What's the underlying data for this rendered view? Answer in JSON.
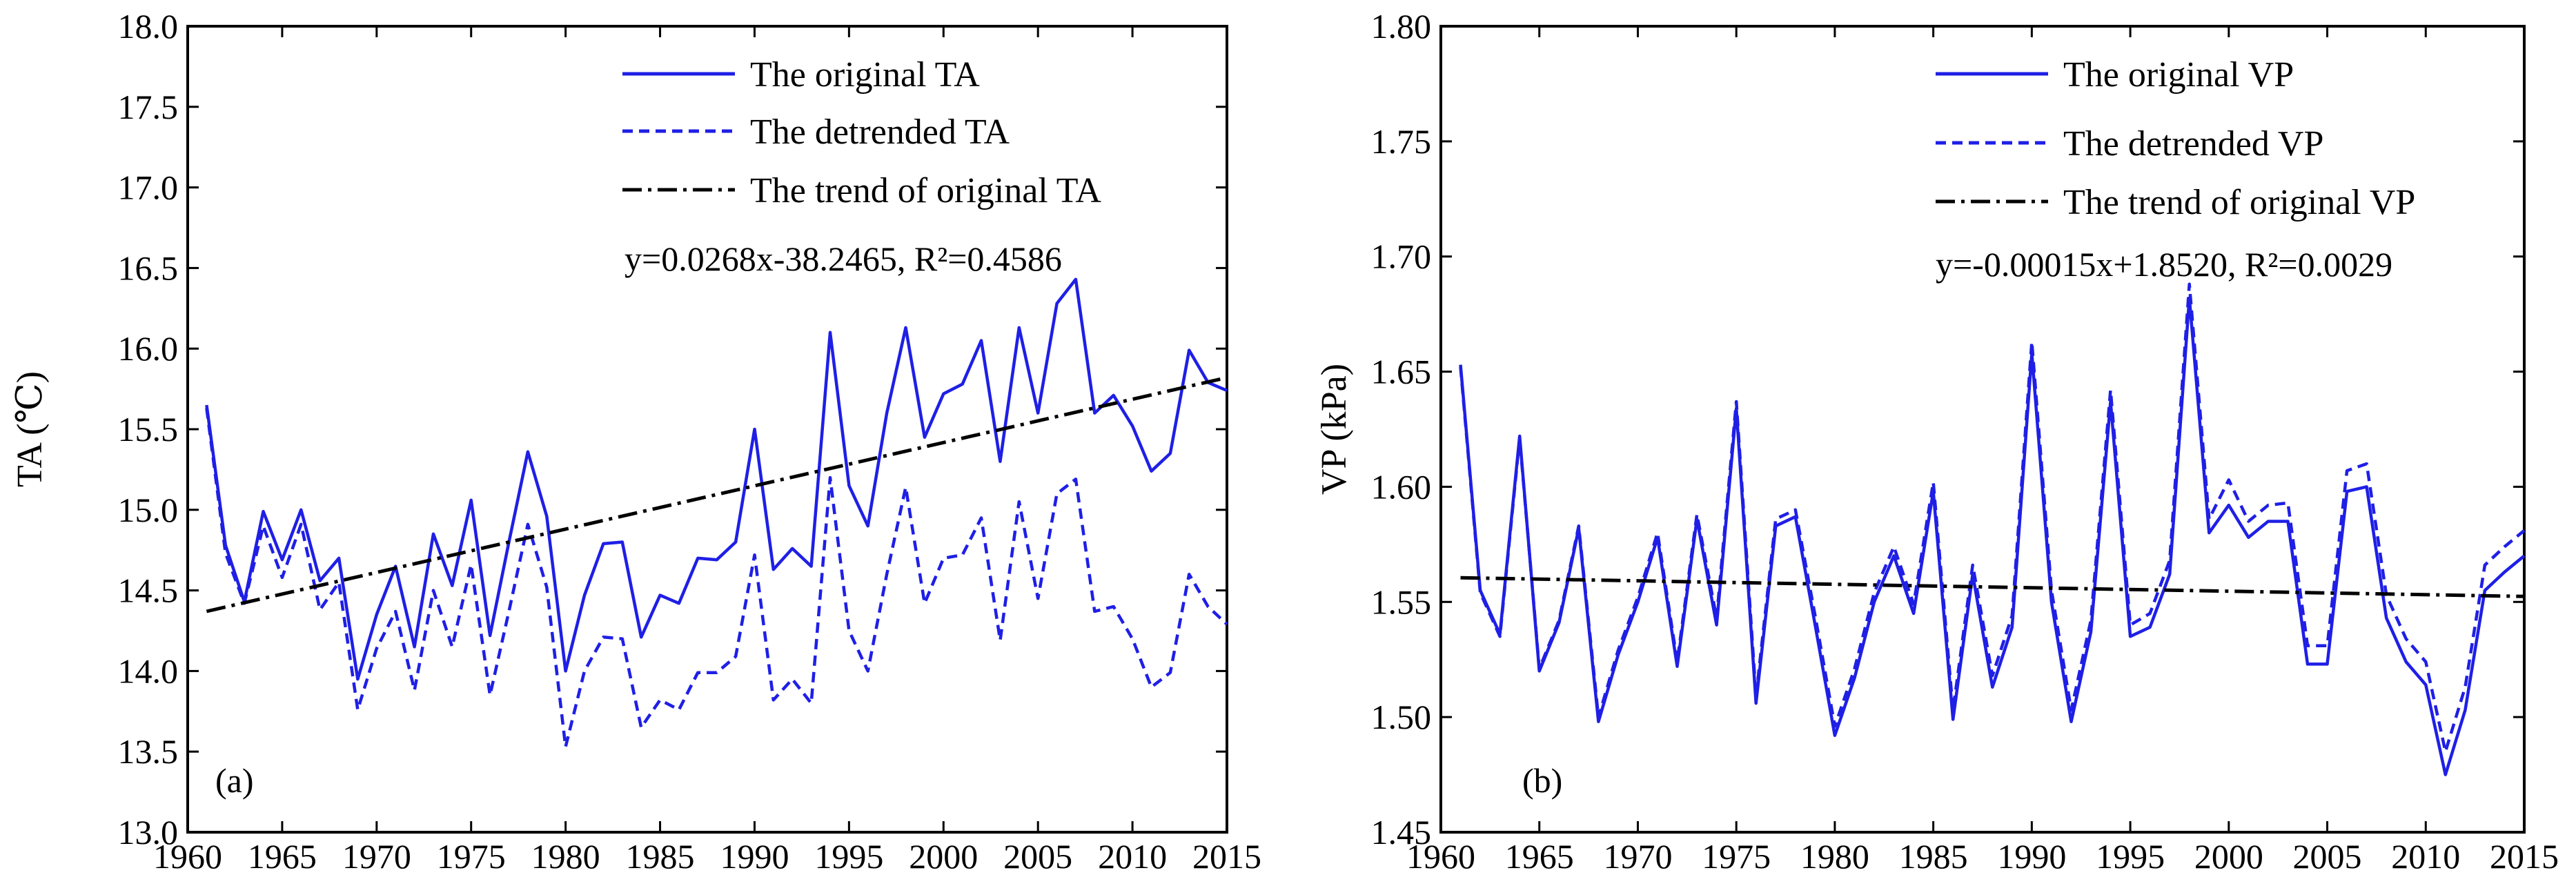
{
  "chart_data": [
    {
      "type": "line",
      "panel_label": "(a)",
      "title": "",
      "xlabel": "",
      "ylabel": "TA (℃)",
      "xlim": [
        1960,
        2015
      ],
      "ylim": [
        13.0,
        18.0
      ],
      "xticks": [
        "1960",
        "1965",
        "1970",
        "1975",
        "1980",
        "1985",
        "1990",
        "1995",
        "2000",
        "2005",
        "2010",
        "2015"
      ],
      "yticks": [
        "13.0",
        "13.5",
        "14.0",
        "14.5",
        "15.0",
        "15.5",
        "16.0",
        "16.5",
        "17.0",
        "17.5",
        "18.0"
      ],
      "legend_position": "top-right",
      "equation": "y=0.0268x-38.2465, R²=0.4586",
      "grid": false,
      "x": [
        1961,
        1962,
        1963,
        1964,
        1965,
        1966,
        1967,
        1968,
        1969,
        1970,
        1971,
        1972,
        1973,
        1974,
        1975,
        1976,
        1977,
        1978,
        1979,
        1980,
        1981,
        1982,
        1983,
        1984,
        1985,
        1986,
        1987,
        1988,
        1989,
        1990,
        1991,
        1992,
        1993,
        1994,
        1995,
        1996,
        1997,
        1998,
        1999,
        2000,
        2001,
        2002,
        2003,
        2004,
        2005,
        2006,
        2007,
        2008,
        2009,
        2010,
        2011,
        2012,
        2013,
        2014,
        2015
      ],
      "series": [
        {
          "name": "The original TA",
          "style": "solid",
          "color": "#1f1fe6",
          "values": [
            15.65,
            14.78,
            14.43,
            14.99,
            14.69,
            15.0,
            14.56,
            14.7,
            13.95,
            14.35,
            14.65,
            14.15,
            14.85,
            14.53,
            15.06,
            14.22,
            14.8,
            15.36,
            14.96,
            14.0,
            14.47,
            14.79,
            14.8,
            14.21,
            14.47,
            14.42,
            14.7,
            14.69,
            14.8,
            15.5,
            14.63,
            14.76,
            14.65,
            16.1,
            15.15,
            14.9,
            15.6,
            16.13,
            15.45,
            15.72,
            15.78,
            16.05,
            15.3,
            16.13,
            15.6,
            16.28,
            16.43,
            15.6,
            15.71,
            15.52,
            15.24,
            15.35,
            15.99,
            15.79,
            15.74
          ]
        },
        {
          "name": "The detrended TA",
          "style": "dashed",
          "color": "#1f1fe6",
          "values": [
            15.63,
            14.73,
            14.42,
            14.9,
            14.58,
            14.91,
            14.38,
            14.55,
            13.76,
            14.14,
            14.37,
            13.88,
            14.5,
            14.15,
            14.66,
            13.85,
            14.37,
            14.91,
            14.52,
            13.53,
            14.0,
            14.21,
            14.2,
            13.65,
            13.82,
            13.76,
            13.99,
            13.99,
            14.09,
            14.72,
            13.82,
            13.95,
            13.8,
            15.2,
            14.25,
            14.0,
            14.6,
            15.14,
            14.42,
            14.7,
            14.72,
            14.95,
            14.19,
            15.05,
            14.45,
            15.1,
            15.19,
            14.37,
            14.4,
            14.2,
            13.9,
            13.99,
            14.6,
            14.4,
            14.29
          ]
        },
        {
          "name": "The trend of original TA",
          "style": "dashdot",
          "color": "#000000",
          "x": [
            1961,
            2015
          ],
          "values": [
            14.37,
            15.82
          ]
        }
      ]
    },
    {
      "type": "line",
      "panel_label": "(b)",
      "title": "",
      "xlabel": "",
      "ylabel": "VP (kPa)",
      "xlim": [
        1960,
        2015
      ],
      "ylim": [
        1.45,
        1.8
      ],
      "xticks": [
        "1960",
        "1965",
        "1970",
        "1975",
        "1980",
        "1985",
        "1990",
        "1995",
        "2000",
        "2005",
        "2010",
        "2015"
      ],
      "yticks": [
        "1.45",
        "1.50",
        "1.55",
        "1.60",
        "1.65",
        "1.70",
        "1.75",
        "1.80"
      ],
      "legend_position": "top-right",
      "equation": "y=-0.00015x+1.8520, R²=0.0029",
      "grid": false,
      "x": [
        1961,
        1962,
        1963,
        1964,
        1965,
        1966,
        1967,
        1968,
        1969,
        1970,
        1971,
        1972,
        1973,
        1974,
        1975,
        1976,
        1977,
        1978,
        1979,
        1980,
        1981,
        1982,
        1983,
        1984,
        1985,
        1986,
        1987,
        1988,
        1989,
        1990,
        1991,
        1992,
        1993,
        1994,
        1995,
        1996,
        1997,
        1998,
        1999,
        2000,
        2001,
        2002,
        2003,
        2004,
        2005,
        2006,
        2007,
        2008,
        2009,
        2010,
        2011,
        2012,
        2013,
        2014,
        2015
      ],
      "series": [
        {
          "name": "The original VP",
          "style": "solid",
          "color": "#1f1fe6",
          "values": [
            1.653,
            1.555,
            1.536,
            1.622,
            1.52,
            1.541,
            1.582,
            1.498,
            1.527,
            1.55,
            1.578,
            1.522,
            1.586,
            1.54,
            1.634,
            1.506,
            1.583,
            1.587,
            1.54,
            1.492,
            1.517,
            1.55,
            1.57,
            1.545,
            1.598,
            1.499,
            1.562,
            1.513,
            1.539,
            1.658,
            1.55,
            1.498,
            1.537,
            1.637,
            1.535,
            1.539,
            1.562,
            1.682,
            1.58,
            1.592,
            1.578,
            1.585,
            1.585,
            1.523,
            1.523,
            1.598,
            1.6,
            1.543,
            1.524,
            1.514,
            1.475,
            1.503,
            1.555,
            1.563,
            1.57
          ]
        },
        {
          "name": "The detrended VP",
          "style": "dashed",
          "color": "#1f1fe6",
          "values": [
            1.652,
            1.554,
            1.535,
            1.621,
            1.521,
            1.542,
            1.583,
            1.5,
            1.529,
            1.552,
            1.58,
            1.524,
            1.588,
            1.543,
            1.637,
            1.509,
            1.586,
            1.59,
            1.544,
            1.496,
            1.521,
            1.554,
            1.574,
            1.549,
            1.602,
            1.503,
            1.566,
            1.518,
            1.544,
            1.663,
            1.555,
            1.503,
            1.542,
            1.642,
            1.54,
            1.545,
            1.568,
            1.688,
            1.586,
            1.603,
            1.585,
            1.592,
            1.593,
            1.531,
            1.531,
            1.607,
            1.61,
            1.553,
            1.534,
            1.524,
            1.485,
            1.513,
            1.566,
            1.574,
            1.581
          ]
        },
        {
          "name": "The trend of original VP",
          "style": "dashdot",
          "color": "#000000",
          "x": [
            1961,
            2015
          ],
          "values": [
            1.5605,
            1.5524
          ]
        }
      ]
    }
  ]
}
